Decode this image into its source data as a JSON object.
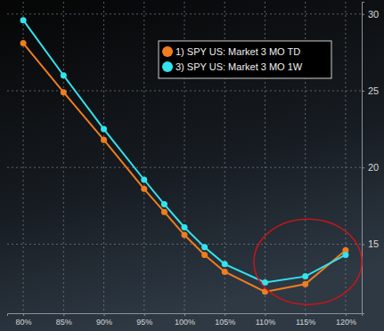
{
  "chart_data": {
    "type": "line",
    "x": [
      80,
      85,
      90,
      95,
      97.5,
      100,
      102.5,
      105,
      110,
      115,
      120
    ],
    "series": [
      {
        "name": "1) SPY US: Market 3 MO TD",
        "color": "#f07d1e",
        "marker": "circle",
        "line_style": "solid",
        "values": [
          28.1,
          24.9,
          21.8,
          18.6,
          17.1,
          15.6,
          14.3,
          13.2,
          11.9,
          12.4,
          14.6
        ]
      },
      {
        "name": "3) SPY US: Market 3 MO 1W",
        "color": "#33e3ee",
        "marker": "circle",
        "line_style": "solid",
        "values": [
          29.6,
          26.0,
          22.5,
          19.2,
          17.6,
          16.1,
          14.8,
          13.7,
          12.5,
          12.9,
          14.3
        ]
      }
    ],
    "xlim": [
      78,
      122
    ],
    "xticks": [
      {
        "value": 80,
        "label": "80%"
      },
      {
        "value": 85,
        "label": "85%"
      },
      {
        "value": 90,
        "label": "90%"
      },
      {
        "value": 95,
        "label": "95%"
      },
      {
        "value": 100,
        "label": "100%"
      },
      {
        "value": 105,
        "label": "105%"
      },
      {
        "value": 110,
        "label": "110%"
      },
      {
        "value": 115,
        "label": "115%"
      },
      {
        "value": 120,
        "label": "120%"
      }
    ],
    "ylim": [
      10.5,
      30.8
    ],
    "yticks": [
      15,
      20,
      25,
      30
    ],
    "grid": true,
    "legend": "top-right"
  }
}
